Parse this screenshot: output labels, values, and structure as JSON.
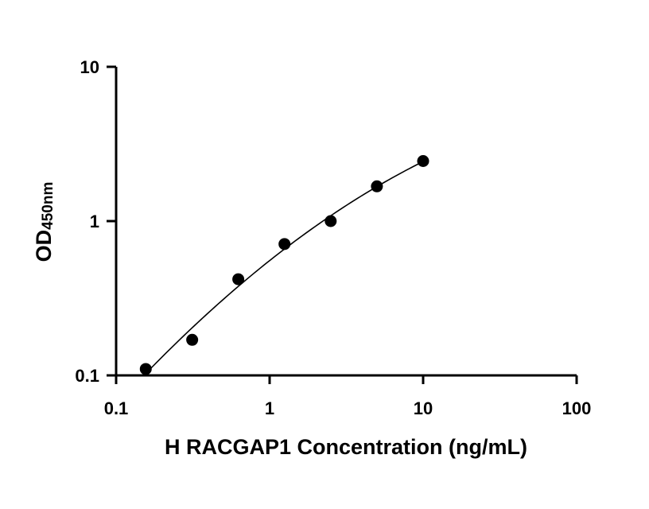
{
  "chart_data": {
    "type": "scatter",
    "title": "",
    "xlabel": "H RACGAP1 Concentration (ng/mL)",
    "ylabel_main": "OD",
    "ylabel_sub": "450nm",
    "x_scale": "log",
    "y_scale": "log",
    "xlim": [
      0.1,
      100
    ],
    "ylim": [
      0.1,
      10
    ],
    "x_ticks": [
      0.1,
      1,
      10,
      100
    ],
    "x_tick_labels": [
      "0.1",
      "1",
      "10",
      "100"
    ],
    "y_ticks": [
      0.1,
      1,
      10
    ],
    "y_tick_labels": [
      "0.1",
      "1",
      "10"
    ],
    "grid": false,
    "legend": "none",
    "series": [
      {
        "x": [
          0.156,
          0.313,
          0.625,
          1.25,
          2.5,
          5,
          10
        ],
        "y": [
          0.11,
          0.17,
          0.42,
          0.71,
          1.0,
          1.68,
          2.45
        ]
      }
    ],
    "fit_curve": {
      "type": "4PL",
      "x_range": [
        0.156,
        10
      ]
    },
    "colors": {
      "marker": "#000000",
      "line": "#000000"
    }
  }
}
